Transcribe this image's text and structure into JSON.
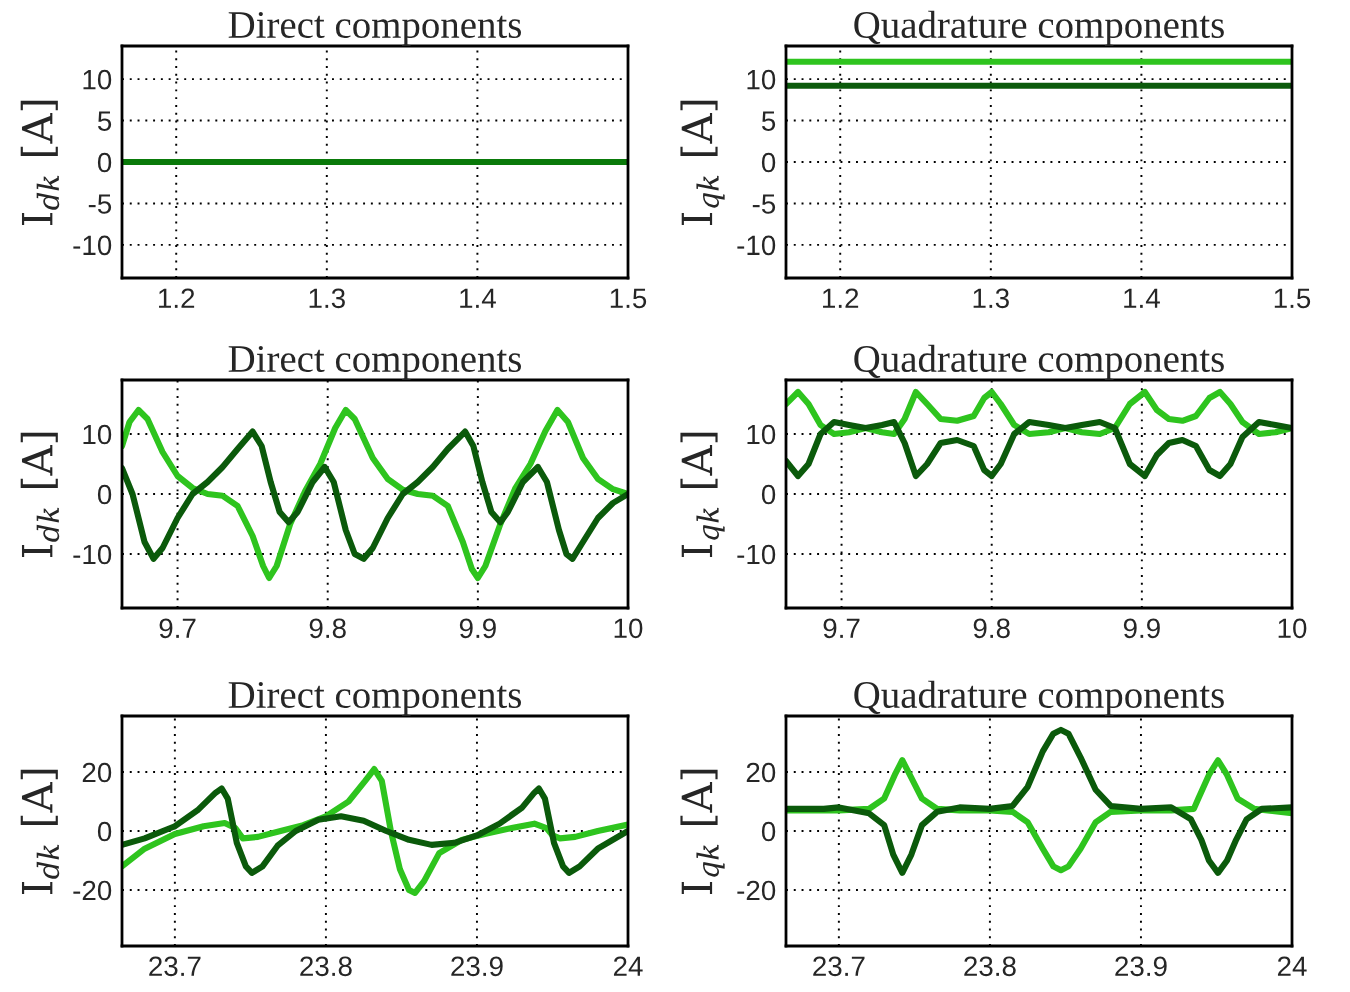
{
  "chart_data": [
    {
      "type": "line",
      "title": "Direct components",
      "ylabel": "I$_{dk}$ [A]",
      "xlim": [
        1.164,
        1.5
      ],
      "ylim": [
        -14,
        14
      ],
      "xticks": [
        1.2,
        1.3,
        1.4,
        1.5
      ],
      "yticks": [
        -10,
        -5,
        0,
        5,
        10
      ],
      "grid": true,
      "legend": false,
      "series": [
        {
          "color": "#0a7a0a",
          "x": [
            1.164,
            1.5
          ],
          "values": [
            0,
            0
          ]
        }
      ]
    },
    {
      "type": "line",
      "title": "Quadrature components",
      "ylabel": "I$_{qk}$ [A]",
      "xlim": [
        1.164,
        1.5
      ],
      "ylim": [
        -14,
        14
      ],
      "xticks": [
        1.2,
        1.3,
        1.4,
        1.5
      ],
      "yticks": [
        -10,
        -5,
        0,
        5,
        10
      ],
      "grid": true,
      "legend": false,
      "series": [
        {
          "color": "#2ec41e",
          "x": [
            1.164,
            1.5
          ],
          "values": [
            12.1,
            12.1
          ]
        },
        {
          "color": "#0b5a0b",
          "x": [
            1.164,
            1.5
          ],
          "values": [
            9.2,
            9.2
          ]
        }
      ]
    },
    {
      "type": "line",
      "title": "Direct components",
      "ylabel": "I$_{dk}$ [A]",
      "xlim": [
        9.663,
        10
      ],
      "ylim": [
        -19,
        19
      ],
      "xticks": [
        9.7,
        9.8,
        9.9,
        10
      ],
      "yticks": [
        -10,
        0,
        10
      ],
      "grid": true,
      "legend": false,
      "series": [
        {
          "color": "#2ec41e",
          "x": [
            9.663,
            9.668,
            9.674,
            9.68,
            9.69,
            9.7,
            9.71,
            9.72,
            9.73,
            9.74,
            9.75,
            9.757,
            9.761,
            9.766,
            9.775,
            9.785,
            9.795,
            9.805,
            9.812,
            9.818,
            9.83,
            9.84,
            9.85,
            9.86,
            9.87,
            9.88,
            9.89,
            9.896,
            9.9,
            9.905,
            9.915,
            9.925,
            9.935,
            9.945,
            9.953,
            9.96,
            9.97,
            9.98,
            9.99,
            10.0
          ],
          "values": [
            8,
            12,
            14,
            12.5,
            7,
            3,
            1,
            0,
            -0.3,
            -2,
            -7,
            -12,
            -14,
            -12,
            -5,
            0.5,
            5,
            11,
            14,
            12.5,
            6,
            2.5,
            0.7,
            0,
            -0.3,
            -2,
            -8,
            -12.5,
            -14,
            -12,
            -5,
            1,
            5,
            10.5,
            14,
            12,
            6,
            2.5,
            0.8,
            0
          ]
        },
        {
          "color": "#0b5a0b",
          "x": [
            9.663,
            9.67,
            9.678,
            9.684,
            9.69,
            9.7,
            9.71,
            9.72,
            9.73,
            9.74,
            9.75,
            9.756,
            9.762,
            9.768,
            9.774,
            9.78,
            9.79,
            9.798,
            9.804,
            9.812,
            9.818,
            9.824,
            9.83,
            9.84,
            9.85,
            9.86,
            9.87,
            9.88,
            9.8915,
            9.897,
            9.903,
            9.909,
            9.915,
            9.92,
            9.93,
            9.94,
            9.946,
            9.954,
            9.959,
            9.963,
            9.97,
            9.98,
            9.99,
            10.0
          ],
          "values": [
            4.3,
            0,
            -8,
            -10.8,
            -9,
            -4,
            0,
            2,
            4.5,
            7.5,
            10.4,
            8,
            2,
            -3,
            -4.7,
            -3,
            2,
            4.5,
            2,
            -6,
            -10,
            -10.8,
            -9,
            -4,
            0,
            2,
            4.5,
            7.5,
            10.4,
            8,
            2,
            -3,
            -4.7,
            -3,
            2,
            4.5,
            2,
            -6,
            -10,
            -10.8,
            -8,
            -4,
            -1.5,
            0
          ]
        }
      ]
    },
    {
      "type": "line",
      "title": "Quadrature components",
      "ylabel": "I$_{qk}$ [A]",
      "xlim": [
        9.663,
        10
      ],
      "ylim": [
        -19,
        19
      ],
      "xticks": [
        9.7,
        9.8,
        9.9,
        10
      ],
      "yticks": [
        -10,
        0,
        10
      ],
      "grid": true,
      "legend": false,
      "series": [
        {
          "color": "#2ec41e",
          "x": [
            9.663,
            9.671,
            9.678,
            9.686,
            9.695,
            9.705,
            9.716,
            9.727,
            9.735,
            9.742,
            9.7495,
            9.757,
            9.766,
            9.777,
            9.788,
            9.795,
            9.8,
            9.806,
            9.815,
            9.825,
            9.838,
            9.849,
            9.86,
            9.872,
            9.882,
            9.892,
            9.902,
            9.91,
            9.918,
            9.927,
            9.936,
            9.945,
            9.952,
            9.959,
            9.967,
            9.978,
            9.989,
            10.0
          ],
          "values": [
            15,
            17,
            15,
            11.5,
            10,
            10.3,
            11,
            10.3,
            10,
            12.5,
            17,
            15,
            12.5,
            12.2,
            13,
            16,
            17,
            15,
            11.5,
            10,
            10.3,
            11,
            10.3,
            10,
            11,
            15,
            17,
            14,
            12.5,
            12.2,
            13,
            16,
            17,
            15,
            12,
            10,
            10.3,
            11
          ]
        },
        {
          "color": "#0b5a0b",
          "x": [
            9.663,
            9.671,
            9.678,
            9.686,
            9.695,
            9.705,
            9.716,
            9.727,
            9.735,
            9.742,
            9.7495,
            9.757,
            9.766,
            9.777,
            9.788,
            9.795,
            9.8,
            9.806,
            9.815,
            9.825,
            9.838,
            9.849,
            9.86,
            9.872,
            9.882,
            9.892,
            9.902,
            9.91,
            9.918,
            9.927,
            9.936,
            9.945,
            9.952,
            9.959,
            9.967,
            9.978,
            9.989,
            10.0
          ],
          "values": [
            5.5,
            3,
            5,
            10,
            12,
            11.5,
            11,
            11.5,
            12,
            8.5,
            3,
            5,
            8.5,
            9,
            8,
            4,
            3,
            5,
            10,
            12,
            11.5,
            11,
            11.5,
            12,
            11,
            5,
            3,
            6.5,
            8.5,
            9,
            8,
            4,
            3,
            5,
            9.5,
            12,
            11.5,
            11
          ]
        }
      ]
    },
    {
      "type": "line",
      "title": "Direct components",
      "ylabel": "I$_{dk}$ [A]",
      "xlim": [
        23.665,
        24
      ],
      "ylim": [
        -39,
        39
      ],
      "xticks": [
        23.7,
        23.8,
        23.9,
        24
      ],
      "yticks": [
        -20,
        0,
        20
      ],
      "grid": true,
      "legend": false,
      "series": [
        {
          "color": "#2ec41e",
          "x": [
            23.665,
            23.68,
            23.7,
            23.719,
            23.733,
            23.74,
            23.745,
            23.755,
            23.77,
            23.785,
            23.8,
            23.815,
            23.826,
            23.832,
            23.837,
            23.843,
            23.849,
            23.855,
            23.859,
            23.865,
            23.875,
            23.89,
            23.905,
            23.923,
            23.938,
            23.946,
            23.95,
            23.955,
            23.965,
            23.98,
            24.0
          ],
          "values": [
            -12,
            -6,
            -1,
            1.6,
            2.7,
            1,
            -2.5,
            -2,
            0,
            2,
            5,
            10,
            17,
            21,
            17,
            0,
            -13,
            -20,
            -21,
            -17,
            -7.5,
            -3,
            -1,
            1,
            2.5,
            1,
            -1.5,
            -2.5,
            -2,
            0,
            2.2
          ]
        },
        {
          "color": "#0b5a0b",
          "x": [
            23.665,
            23.68,
            23.7,
            23.715,
            23.727,
            23.731,
            23.735,
            23.741,
            23.747,
            23.751,
            23.758,
            23.768,
            23.78,
            23.795,
            23.81,
            23.825,
            23.84,
            23.855,
            23.87,
            23.885,
            23.9,
            23.915,
            23.93,
            23.938,
            23.941,
            23.945,
            23.951,
            23.957,
            23.961,
            23.968,
            23.98,
            24.0
          ],
          "values": [
            -4.7,
            -2.5,
            1.6,
            7,
            13,
            14.4,
            11,
            -4,
            -12,
            -14.2,
            -12,
            -5,
            0,
            3.8,
            5,
            3.5,
            0,
            -3,
            -4.7,
            -4,
            -1.5,
            2.5,
            8,
            13,
            14.4,
            11,
            -4,
            -12,
            -14.2,
            -12,
            -6,
            0
          ]
        }
      ]
    },
    {
      "type": "line",
      "title": "Quadrature components",
      "ylabel": "I$_{qk}$ [A]",
      "xlim": [
        23.665,
        24
      ],
      "ylim": [
        -39,
        39
      ],
      "xticks": [
        23.7,
        23.8,
        23.9,
        24
      ],
      "yticks": [
        -20,
        0,
        20
      ],
      "grid": true,
      "legend": false,
      "series": [
        {
          "color": "#2ec41e",
          "x": [
            23.665,
            23.7,
            23.72,
            23.73,
            23.737,
            23.742,
            23.747,
            23.755,
            23.765,
            23.78,
            23.8,
            23.815,
            23.825,
            23.835,
            23.842,
            23.847,
            23.852,
            23.86,
            23.87,
            23.88,
            23.9,
            23.92,
            23.935,
            23.938,
            23.945,
            23.951,
            23.957,
            23.964,
            23.975,
            24.0
          ],
          "values": [
            7,
            7,
            7.5,
            11,
            19,
            24,
            19,
            11,
            7.5,
            7,
            7,
            6.5,
            3,
            -6,
            -12,
            -13.3,
            -12,
            -6,
            3,
            6.5,
            7,
            7,
            7.5,
            11,
            19,
            24,
            19,
            11,
            7.5,
            6
          ]
        },
        {
          "color": "#0b5a0b",
          "x": [
            23.665,
            23.69,
            23.7,
            23.72,
            23.73,
            23.736,
            23.742,
            23.748,
            23.755,
            23.765,
            23.78,
            23.8,
            23.815,
            23.825,
            23.835,
            23.842,
            23.847,
            23.852,
            23.86,
            23.87,
            23.88,
            23.9,
            23.92,
            23.933,
            23.94,
            23.945,
            23.951,
            23.957,
            23.963,
            23.97,
            23.98,
            24.0
          ],
          "values": [
            7.5,
            7.5,
            8,
            6,
            2,
            -8,
            -14.2,
            -8,
            2,
            6.5,
            8,
            7.5,
            8.5,
            15,
            27,
            33,
            34.3,
            33,
            25,
            14,
            8.5,
            7.5,
            8,
            4,
            -3,
            -10,
            -14.2,
            -10,
            -3,
            4,
            7.5,
            8
          ]
        }
      ]
    }
  ]
}
